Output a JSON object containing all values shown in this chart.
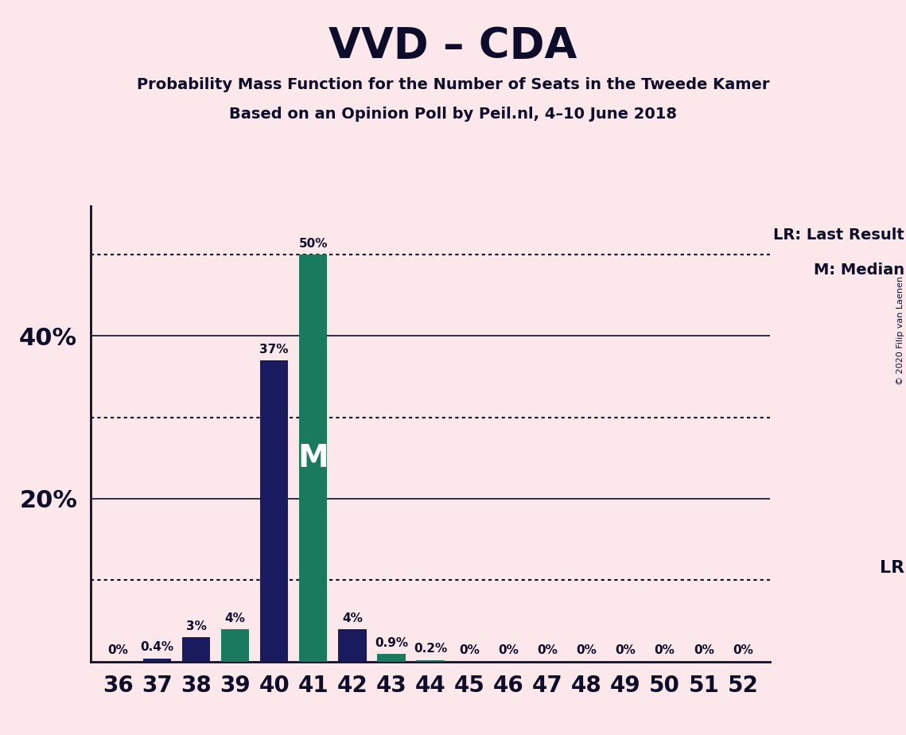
{
  "title": "VVD – CDA",
  "subtitle1": "Probability Mass Function for the Number of Seats in the Tweede Kamer",
  "subtitle2": "Based on an Opinion Poll by Peil.nl, 4–10 June 2018",
  "copyright": "© 2020 Filip van Laenen",
  "background_color": "#fce8ea",
  "bar_color_navy": "#1a1a5e",
  "bar_color_teal": "#1a7a5e",
  "text_color": "#0d0d2b",
  "seats": [
    36,
    37,
    38,
    39,
    40,
    41,
    42,
    43,
    44,
    45,
    46,
    47,
    48,
    49,
    50,
    51,
    52
  ],
  "navy_values": [
    0.0,
    0.4,
    3.0,
    0.0,
    37.0,
    0.0,
    4.0,
    0.0,
    0.0,
    0.0,
    0.0,
    0.0,
    0.0,
    0.0,
    0.0,
    0.0,
    0.0
  ],
  "teal_values": [
    0.0,
    0.0,
    0.0,
    4.0,
    0.0,
    50.0,
    0.0,
    0.9,
    0.2,
    0.0,
    0.0,
    0.0,
    0.0,
    0.0,
    0.0,
    0.0,
    0.0
  ],
  "median_seat": 41,
  "ylim": [
    0,
    56
  ],
  "yticks": [
    20,
    40
  ],
  "ytick_labels": [
    "20%",
    "40%"
  ],
  "solid_lines": [
    20,
    40
  ],
  "dotted_lines": [
    10,
    30,
    50
  ],
  "lr_label": "LR: Last Result",
  "median_label": "M: Median",
  "lr_short": "LR",
  "median_letter": "M",
  "bar_width": 0.72
}
